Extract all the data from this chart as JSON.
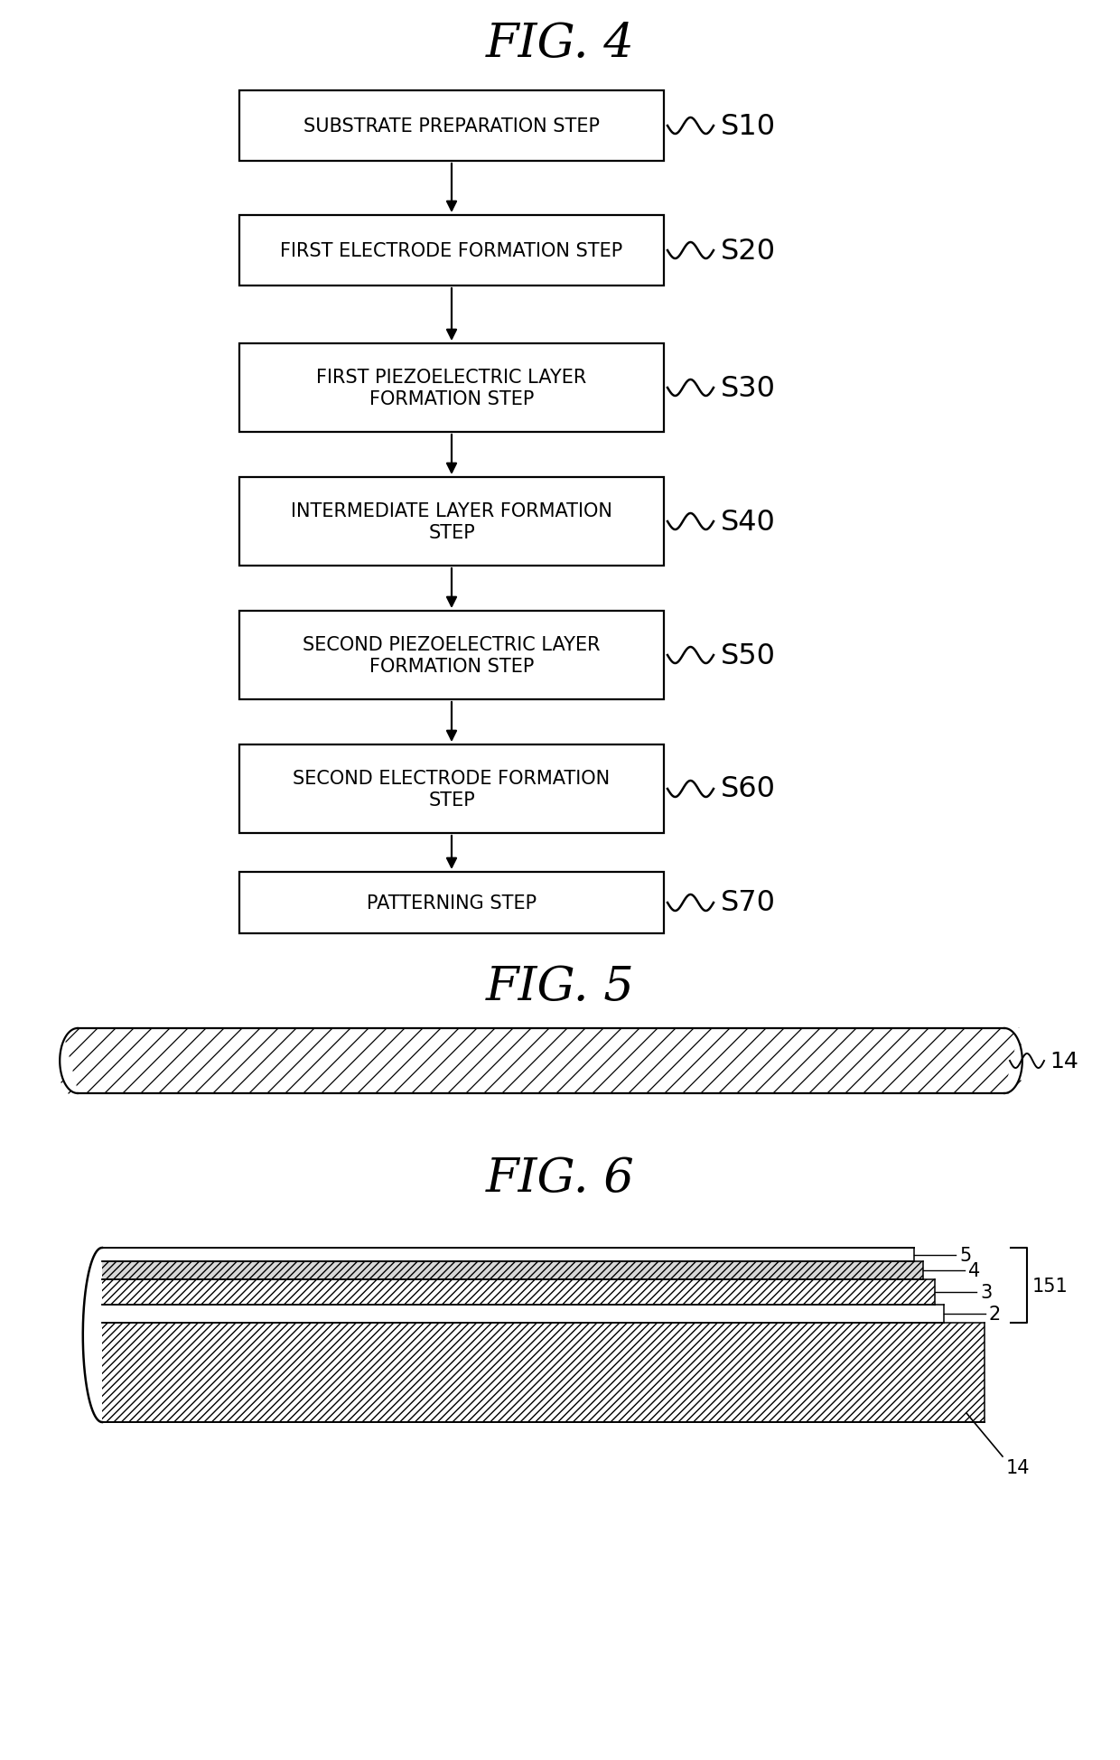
{
  "title4": "FIG. 4",
  "title5": "FIG. 5",
  "title6": "FIG. 6",
  "flowchart_steps": [
    {
      "label": "SUBSTRATE PREPARATION STEP",
      "step": "S10"
    },
    {
      "label": "FIRST ELECTRODE FORMATION STEP",
      "step": "S20"
    },
    {
      "label": "FIRST PIEZOELECTRIC LAYER\nFORMATION STEP",
      "step": "S30"
    },
    {
      "label": "INTERMEDIATE LAYER FORMATION\nSTEP",
      "step": "S40"
    },
    {
      "label": "SECOND PIEZOELECTRIC LAYER\nFORMATION STEP",
      "step": "S50"
    },
    {
      "label": "SECOND ELECTRODE FORMATION\nSTEP",
      "step": "S60"
    },
    {
      "label": "PATTERNING STEP",
      "step": "S70"
    }
  ],
  "bg_color": "#ffffff",
  "box_color": "#ffffff",
  "box_edge_color": "#000000",
  "text_color": "#000000",
  "arrow_color": "#000000"
}
